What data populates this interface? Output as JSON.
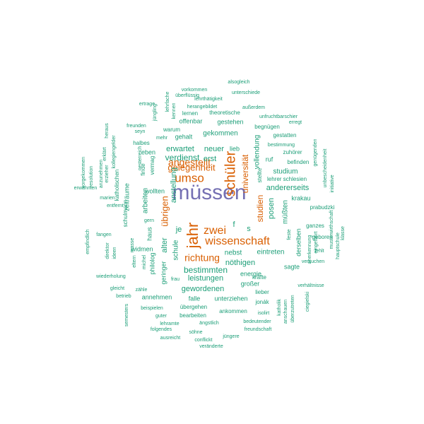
{
  "chart_data": {
    "type": "wordcloud",
    "colors": {
      "top": "#7570b3",
      "high": "#d95f02",
      "base": "#1b9e77"
    },
    "words": [
      {
        "text": "müssen",
        "tier": "top"
      },
      {
        "text": "jahr",
        "tier": "high"
      },
      {
        "text": "schüler",
        "tier": "high"
      },
      {
        "text": "umso",
        "tier": "high"
      },
      {
        "text": "wissenschaft",
        "tier": "high"
      },
      {
        "text": "zwei",
        "tier": "high"
      },
      {
        "text": "angestellt",
        "tier": "high"
      },
      {
        "text": "gelegenheit",
        "tier": "high"
      },
      {
        "text": "richtung",
        "tier": "high"
      },
      {
        "text": "universität",
        "tier": "high"
      },
      {
        "text": "übrigen",
        "tier": "high"
      },
      {
        "text": "studien",
        "tier": "high"
      },
      {
        "text": "anstellung",
        "tier": "base"
      },
      {
        "text": "verdienst",
        "tier": "base"
      },
      {
        "text": "erwartet",
        "tier": "base"
      },
      {
        "text": "neuer",
        "tier": "base"
      },
      {
        "text": "lieb",
        "tier": "base"
      },
      {
        "text": "erst",
        "tier": "base"
      },
      {
        "text": "gekommen",
        "tier": "base"
      },
      {
        "text": "gestehen",
        "tier": "base"
      },
      {
        "text": "gehalt",
        "tier": "base"
      },
      {
        "text": "offenbar",
        "tier": "base"
      },
      {
        "text": "warum",
        "tier": "base"
      },
      {
        "text": "mehr",
        "tier": "base"
      },
      {
        "text": "halbes",
        "tier": "base"
      },
      {
        "text": "eben",
        "tier": "base"
      },
      {
        "text": "finde",
        "tier": "base"
      },
      {
        "text": "vermag",
        "tier": "base"
      },
      {
        "text": "wollten",
        "tier": "base"
      },
      {
        "text": "arbeiten",
        "tier": "base"
      },
      {
        "text": "haus",
        "tier": "base"
      },
      {
        "text": "zeiträume",
        "tier": "base"
      },
      {
        "text": "schulmann",
        "tier": "base"
      },
      {
        "text": "alter",
        "tier": "base"
      },
      {
        "text": "je",
        "tier": "base"
      },
      {
        "text": "schule",
        "tier": "base"
      },
      {
        "text": "philolog",
        "tier": "base"
      },
      {
        "text": "widmen",
        "tier": "base"
      },
      {
        "text": "bestimmten",
        "tier": "base"
      },
      {
        "text": "leistungen",
        "tier": "base"
      },
      {
        "text": "gewordenen",
        "tier": "base"
      },
      {
        "text": "geringer",
        "tier": "base"
      },
      {
        "text": "nöthigen",
        "tier": "base"
      },
      {
        "text": "nebst",
        "tier": "base"
      },
      {
        "text": "eintreten",
        "tier": "base"
      },
      {
        "text": "energie",
        "tier": "base"
      },
      {
        "text": "kräfte",
        "tier": "base"
      },
      {
        "text": "großer",
        "tier": "base"
      },
      {
        "text": "sagte",
        "tier": "base"
      },
      {
        "text": "annehmen",
        "tier": "base"
      },
      {
        "text": "falle",
        "tier": "base"
      },
      {
        "text": "unterziehen",
        "tier": "base"
      },
      {
        "text": "lieber",
        "tier": "base"
      },
      {
        "text": "jonák",
        "tier": "base"
      },
      {
        "text": "andererseits",
        "tier": "base"
      },
      {
        "text": "studium",
        "tier": "base"
      },
      {
        "text": "posen",
        "tier": "base"
      },
      {
        "text": "müßten",
        "tier": "base"
      },
      {
        "text": "vollendung",
        "tier": "base"
      },
      {
        "text": "ruf",
        "tier": "base"
      },
      {
        "text": "lehrer schlesien",
        "tier": "base"
      },
      {
        "text": "krakau",
        "tier": "base"
      },
      {
        "text": "derselben",
        "tier": "base"
      },
      {
        "text": "ganzes",
        "tier": "base"
      },
      {
        "text": "geboren",
        "tier": "base"
      },
      {
        "text": "prabudzki",
        "tier": "base"
      },
      {
        "text": "befinden",
        "tier": "base"
      },
      {
        "text": "zuhörer",
        "tier": "base"
      },
      {
        "text": "bestimmung",
        "tier": "base"
      },
      {
        "text": "gestatten",
        "tier": "base"
      },
      {
        "text": "begnügen",
        "tier": "base"
      },
      {
        "text": "erregt",
        "tier": "base"
      },
      {
        "text": "unfruchtbarschier",
        "tier": "base"
      },
      {
        "text": "theoretische",
        "tier": "base"
      },
      {
        "text": "lernen",
        "tier": "base"
      },
      {
        "text": "herangebildet",
        "tier": "base"
      },
      {
        "text": "außerdem",
        "tier": "base"
      },
      {
        "text": "lehrthätigkeit",
        "tier": "base"
      },
      {
        "text": "überflüssig",
        "tier": "base"
      },
      {
        "text": "unterschiede",
        "tier": "base"
      },
      {
        "text": "vorkommen",
        "tier": "base"
      },
      {
        "text": "alsogleich",
        "tier": "base"
      },
      {
        "text": "lehrfache",
        "tier": "base"
      },
      {
        "text": "kennen",
        "tier": "base"
      },
      {
        "text": "jüngling",
        "tier": "base"
      },
      {
        "text": "ertrage",
        "tier": "base"
      },
      {
        "text": "freunden",
        "tier": "base"
      },
      {
        "text": "seyn",
        "tier": "base"
      },
      {
        "text": "oesterreich",
        "tier": "base"
      },
      {
        "text": "erklärt",
        "tier": "base"
      },
      {
        "text": "heraus",
        "tier": "base"
      },
      {
        "text": "kollegiengelder",
        "tier": "base"
      },
      {
        "text": "katholischen",
        "tier": "base"
      },
      {
        "text": "anzunehmen",
        "tier": "base"
      },
      {
        "text": "erzieher",
        "tier": "base"
      },
      {
        "text": "resolution",
        "tier": "base"
      },
      {
        "text": "vorgekommen",
        "tier": "base"
      },
      {
        "text": "erwähnten",
        "tier": "base"
      },
      {
        "text": "marien",
        "tier": "base"
      },
      {
        "text": "entfernt",
        "tier": "base"
      },
      {
        "text": "gern",
        "tier": "base"
      },
      {
        "text": "fangen",
        "tier": "base"
      },
      {
        "text": "ideen",
        "tier": "base"
      },
      {
        "text": "masse",
        "tier": "base"
      },
      {
        "text": "direktor",
        "tier": "base"
      },
      {
        "text": "eltern",
        "tier": "base"
      },
      {
        "text": "empfindlich",
        "tier": "base"
      },
      {
        "text": "michel",
        "tier": "base"
      },
      {
        "text": "wiederholung",
        "tier": "base"
      },
      {
        "text": "frau",
        "tier": "base"
      },
      {
        "text": "gleicht",
        "tier": "base"
      },
      {
        "text": "zähle",
        "tier": "base"
      },
      {
        "text": "betrieb",
        "tier": "base"
      },
      {
        "text": "semesters",
        "tier": "base"
      },
      {
        "text": "beispielen",
        "tier": "base"
      },
      {
        "text": "übergehen",
        "tier": "base"
      },
      {
        "text": "guter",
        "tier": "base"
      },
      {
        "text": "bearbeiten",
        "tier": "base"
      },
      {
        "text": "ankommen",
        "tier": "base"
      },
      {
        "text": "isolirt",
        "tier": "base"
      },
      {
        "text": "lehramte",
        "tier": "base"
      },
      {
        "text": "ängstlich",
        "tier": "base"
      },
      {
        "text": "bedeutender",
        "tier": "base"
      },
      {
        "text": "folgendes",
        "tier": "base"
      },
      {
        "text": "freundschaft",
        "tier": "base"
      },
      {
        "text": "söhne",
        "tier": "base"
      },
      {
        "text": "ausreicht",
        "tier": "base"
      },
      {
        "text": "conflickt",
        "tier": "base"
      },
      {
        "text": "jüngere",
        "tier": "base"
      },
      {
        "text": "veränderte",
        "tier": "base"
      },
      {
        "text": "katholik",
        "tier": "base"
      },
      {
        "text": "anschauen",
        "tier": "base"
      },
      {
        "text": "überzutreten",
        "tier": "base"
      },
      {
        "text": "verhältnisse",
        "tier": "base"
      },
      {
        "text": "ciegielski",
        "tier": "base"
      },
      {
        "text": "feste",
        "tier": "base"
      },
      {
        "text": "anerkennung",
        "tier": "base"
      },
      {
        "text": "eingeführt",
        "tier": "base"
      },
      {
        "text": "versuchen",
        "tier": "base"
      },
      {
        "text": "fehlt",
        "tier": "base"
      },
      {
        "text": "klasse",
        "tier": "base"
      },
      {
        "text": "hauptschule",
        "tier": "base"
      },
      {
        "text": "musterwirthschaft",
        "tier": "base"
      },
      {
        "text": "unbescheidenheit",
        "tier": "base"
      },
      {
        "text": "genügenden",
        "tier": "base"
      },
      {
        "text": "initiative",
        "tier": "base"
      },
      {
        "text": "stellte",
        "tier": "base"
      },
      {
        "text": "f",
        "tier": "base"
      },
      {
        "text": "s",
        "tier": "base"
      }
    ]
  }
}
